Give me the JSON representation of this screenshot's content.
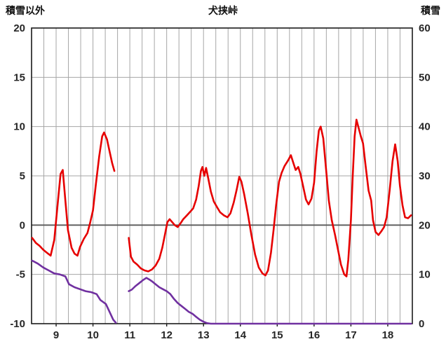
{
  "header": {
    "left_axis_title": "積雪以外",
    "title": "犬挟峠",
    "right_axis_title": "積雪"
  },
  "chart_data": {
    "type": "line",
    "title": "犬挟峠",
    "x_axis": {
      "min": 8.333,
      "max": 18.667,
      "ticks": [
        9,
        10,
        11,
        12,
        13,
        14,
        15,
        16,
        17,
        18
      ],
      "minor_step": 0.33333
    },
    "left_axis": {
      "title": "積雪以外",
      "min": -10,
      "max": 20,
      "ticks": [
        20,
        15,
        10,
        5,
        0,
        -5,
        -10
      ]
    },
    "right_axis": {
      "title": "積雪",
      "min": 0,
      "max": 60,
      "ticks": [
        60,
        50,
        40,
        30,
        20,
        10,
        0
      ]
    },
    "grid": {
      "show": true,
      "color": "#a6a6a6",
      "zero_line_color": "#595959",
      "border_color": "#1a1a1a"
    },
    "legend": {
      "show": false
    },
    "series": [
      {
        "name": "積雪以外",
        "axis": "left",
        "color": "#e60000",
        "width": 2.6,
        "segments": [
          [
            [
              8.35,
              -1.3
            ],
            [
              8.45,
              -1.8
            ],
            [
              8.55,
              -2.1
            ],
            [
              8.65,
              -2.5
            ],
            [
              8.75,
              -2.8
            ],
            [
              8.85,
              -3.1
            ],
            [
              8.95,
              -1.5
            ],
            [
              9.05,
              2.5
            ],
            [
              9.12,
              5.2
            ],
            [
              9.18,
              5.6
            ],
            [
              9.25,
              2.5
            ],
            [
              9.32,
              -0.5
            ],
            [
              9.42,
              -2.3
            ],
            [
              9.5,
              -2.9
            ],
            [
              9.58,
              -3.1
            ],
            [
              9.65,
              -2.2
            ],
            [
              9.75,
              -1.4
            ],
            [
              9.85,
              -0.8
            ],
            [
              9.92,
              0.2
            ],
            [
              10.0,
              1.5
            ],
            [
              10.08,
              4.2
            ],
            [
              10.17,
              7.0
            ],
            [
              10.25,
              9.0
            ],
            [
              10.3,
              9.4
            ],
            [
              10.38,
              8.7
            ],
            [
              10.45,
              7.5
            ],
            [
              10.52,
              6.3
            ],
            [
              10.58,
              5.5
            ]
          ],
          [
            [
              10.97,
              -1.3
            ],
            [
              11.03,
              -3.2
            ],
            [
              11.1,
              -3.7
            ],
            [
              11.2,
              -4.0
            ],
            [
              11.3,
              -4.4
            ],
            [
              11.4,
              -4.6
            ],
            [
              11.5,
              -4.7
            ],
            [
              11.6,
              -4.5
            ],
            [
              11.7,
              -4.1
            ],
            [
              11.8,
              -3.4
            ],
            [
              11.88,
              -2.3
            ],
            [
              11.95,
              -1.0
            ],
            [
              12.02,
              0.3
            ],
            [
              12.08,
              0.6
            ],
            [
              12.15,
              0.3
            ],
            [
              12.22,
              0.0
            ],
            [
              12.3,
              -0.2
            ],
            [
              12.38,
              0.2
            ],
            [
              12.45,
              0.6
            ],
            [
              12.55,
              1.0
            ],
            [
              12.65,
              1.4
            ],
            [
              12.72,
              1.7
            ],
            [
              12.8,
              2.6
            ],
            [
              12.87,
              4.0
            ],
            [
              12.93,
              5.5
            ],
            [
              12.97,
              5.9
            ],
            [
              13.02,
              5.0
            ],
            [
              13.07,
              5.8
            ],
            [
              13.13,
              4.7
            ],
            [
              13.2,
              3.4
            ],
            [
              13.28,
              2.4
            ],
            [
              13.37,
              1.8
            ],
            [
              13.45,
              1.3
            ],
            [
              13.55,
              1.0
            ],
            [
              13.65,
              0.8
            ],
            [
              13.73,
              1.2
            ],
            [
              13.82,
              2.3
            ],
            [
              13.9,
              3.6
            ],
            [
              13.97,
              4.9
            ],
            [
              14.03,
              4.4
            ],
            [
              14.1,
              3.2
            ],
            [
              14.2,
              1.2
            ],
            [
              14.3,
              -1.0
            ],
            [
              14.4,
              -3.0
            ],
            [
              14.5,
              -4.3
            ],
            [
              14.6,
              -4.9
            ],
            [
              14.68,
              -5.1
            ],
            [
              14.75,
              -4.6
            ],
            [
              14.83,
              -2.8
            ],
            [
              14.9,
              -0.5
            ],
            [
              14.97,
              2.0
            ],
            [
              15.05,
              4.4
            ],
            [
              15.12,
              5.3
            ],
            [
              15.2,
              6.0
            ],
            [
              15.3,
              6.6
            ],
            [
              15.37,
              7.1
            ],
            [
              15.43,
              6.4
            ],
            [
              15.5,
              5.6
            ],
            [
              15.57,
              5.9
            ],
            [
              15.63,
              5.2
            ],
            [
              15.7,
              4.0
            ],
            [
              15.78,
              2.6
            ],
            [
              15.85,
              2.1
            ],
            [
              15.93,
              2.7
            ],
            [
              16.0,
              4.3
            ],
            [
              16.07,
              7.5
            ],
            [
              16.13,
              9.6
            ],
            [
              16.18,
              10.0
            ],
            [
              16.25,
              8.8
            ],
            [
              16.33,
              5.5
            ],
            [
              16.4,
              2.5
            ],
            [
              16.48,
              0.5
            ],
            [
              16.57,
              -1.0
            ],
            [
              16.65,
              -2.5
            ],
            [
              16.73,
              -4.0
            ],
            [
              16.82,
              -5.0
            ],
            [
              16.88,
              -5.2
            ],
            [
              16.93,
              -3.5
            ],
            [
              17.0,
              0.5
            ],
            [
              17.05,
              5.0
            ],
            [
              17.1,
              9.0
            ],
            [
              17.15,
              10.7
            ],
            [
              17.2,
              10.0
            ],
            [
              17.27,
              9.0
            ],
            [
              17.33,
              8.3
            ],
            [
              17.4,
              6.0
            ],
            [
              17.48,
              3.5
            ],
            [
              17.55,
              2.5
            ],
            [
              17.6,
              0.5
            ],
            [
              17.67,
              -0.7
            ],
            [
              17.75,
              -1.0
            ],
            [
              17.83,
              -0.6
            ],
            [
              17.9,
              -0.2
            ],
            [
              17.97,
              0.8
            ],
            [
              18.05,
              3.5
            ],
            [
              18.13,
              6.5
            ],
            [
              18.2,
              8.2
            ],
            [
              18.27,
              6.5
            ],
            [
              18.33,
              4.0
            ],
            [
              18.4,
              2.0
            ],
            [
              18.47,
              0.8
            ],
            [
              18.55,
              0.7
            ],
            [
              18.63,
              1.0
            ]
          ]
        ]
      },
      {
        "name": "積雪",
        "axis": "right",
        "color": "#7030a0",
        "width": 2.6,
        "segments": [
          [
            [
              8.35,
              12.8
            ],
            [
              8.5,
              12.2
            ],
            [
              8.65,
              11.4
            ],
            [
              8.8,
              10.8
            ],
            [
              8.95,
              10.2
            ],
            [
              9.1,
              10.0
            ],
            [
              9.25,
              9.6
            ],
            [
              9.35,
              8.0
            ],
            [
              9.5,
              7.4
            ],
            [
              9.65,
              7.0
            ],
            [
              9.8,
              6.6
            ],
            [
              9.95,
              6.4
            ],
            [
              10.1,
              6.0
            ],
            [
              10.2,
              4.8
            ],
            [
              10.35,
              4.0
            ],
            [
              10.45,
              2.4
            ],
            [
              10.55,
              0.8
            ],
            [
              10.62,
              0.2
            ]
          ],
          [
            [
              10.97,
              6.6
            ],
            [
              11.05,
              6.9
            ],
            [
              11.15,
              7.6
            ],
            [
              11.25,
              8.2
            ],
            [
              11.35,
              8.8
            ],
            [
              11.45,
              9.3
            ],
            [
              11.52,
              9.0
            ],
            [
              11.6,
              8.6
            ],
            [
              11.7,
              8.0
            ],
            [
              11.8,
              7.4
            ],
            [
              11.9,
              7.0
            ],
            [
              12.0,
              6.6
            ],
            [
              12.1,
              6.0
            ],
            [
              12.2,
              5.0
            ],
            [
              12.3,
              4.2
            ],
            [
              12.4,
              3.6
            ],
            [
              12.5,
              3.0
            ],
            [
              12.6,
              2.4
            ],
            [
              12.7,
              2.0
            ],
            [
              12.8,
              1.4
            ],
            [
              12.9,
              0.8
            ],
            [
              13.0,
              0.4
            ],
            [
              13.1,
              0.1
            ],
            [
              13.2,
              0
            ],
            [
              13.6,
              0
            ],
            [
              14.0,
              0
            ],
            [
              14.5,
              0
            ],
            [
              15.0,
              0
            ],
            [
              15.5,
              0
            ],
            [
              16.0,
              0
            ],
            [
              16.5,
              0
            ],
            [
              17.0,
              0
            ],
            [
              17.5,
              0
            ],
            [
              18.0,
              0
            ],
            [
              18.63,
              0
            ]
          ]
        ]
      }
    ]
  }
}
